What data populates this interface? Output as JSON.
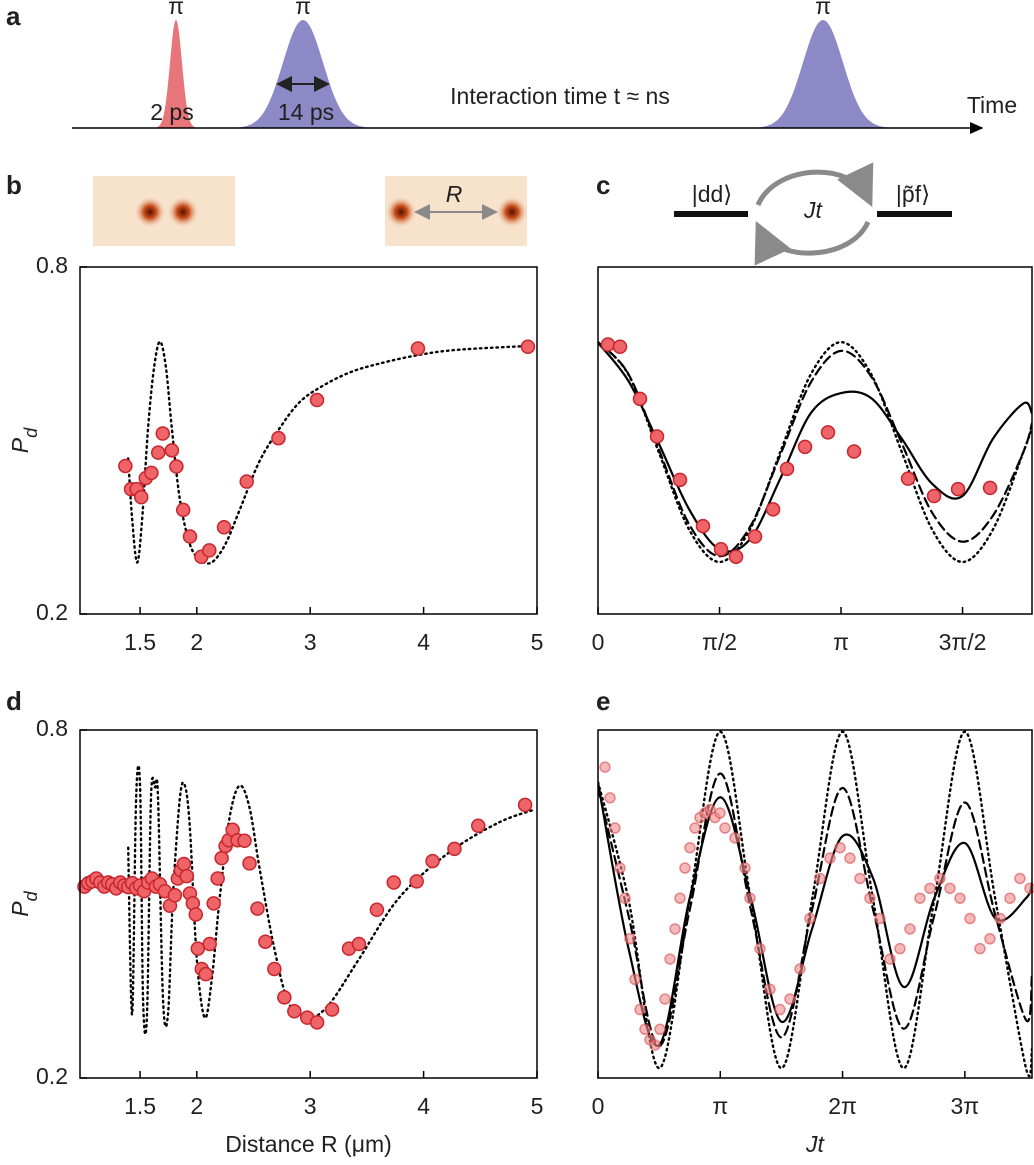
{
  "panel_a": {
    "label": "a",
    "pulse_labels": [
      "π",
      "π",
      "π"
    ],
    "widths": [
      "2 ps",
      "14 ps"
    ],
    "interaction": "Interaction time t ≈ ns",
    "axis": "Time"
  },
  "chart_data": [
    {
      "type": "scatter",
      "panel": "b",
      "image_label": "R",
      "y_label": "P",
      "y_label_sub": "d",
      "xlim": [
        0.97,
        5
      ],
      "xticks": [
        1.5,
        2,
        3,
        4,
        5
      ],
      "ylim": [
        0.2,
        0.8
      ],
      "yticks": [
        0.2,
        0.8
      ],
      "lines": [
        {
          "style": "dotted",
          "color": "#000000",
          "x": [
            1.395,
            1.43,
            1.474,
            1.518,
            1.57,
            1.623,
            1.675,
            1.728,
            1.78,
            1.85,
            1.94,
            2.03,
            2.13,
            2.25,
            2.38,
            2.55,
            2.73,
            2.9,
            3.08,
            3.34,
            3.61,
            3.96,
            4.31,
            4.98
          ],
          "values": [
            0.469,
            0.364,
            0.289,
            0.364,
            0.521,
            0.626,
            0.671,
            0.626,
            0.521,
            0.399,
            0.32,
            0.294,
            0.289,
            0.32,
            0.381,
            0.463,
            0.521,
            0.565,
            0.591,
            0.617,
            0.633,
            0.648,
            0.657,
            0.664
          ]
        }
      ],
      "points": {
        "color": "#ef6468",
        "edge": "#c8262c",
        "opacity": 1,
        "x": [
          1.37,
          1.42,
          1.47,
          1.51,
          1.55,
          1.6,
          1.66,
          1.7,
          1.78,
          1.82,
          1.88,
          1.94,
          2.04,
          2.11,
          2.24,
          2.44,
          2.72,
          3.06,
          3.95,
          4.92
        ],
        "values": [
          0.456,
          0.416,
          0.416,
          0.402,
          0.435,
          0.444,
          0.479,
          0.512,
          0.483,
          0.455,
          0.38,
          0.334,
          0.299,
          0.31,
          0.35,
          0.429,
          0.504,
          0.57,
          0.659,
          0.662
        ]
      }
    },
    {
      "type": "scatter",
      "panel": "c",
      "diagram": {
        "left": "|dd⟩",
        "middle": "Jt",
        "right": "|p̃f⟩"
      },
      "xlim": [
        0,
        5.61
      ],
      "xticks": [
        0,
        {
          "value": 1.5708,
          "label": "π/2"
        },
        {
          "value": 3.1416,
          "label": "π"
        },
        {
          "value": 4.7124,
          "label": "3π/2"
        }
      ],
      "ylim": [
        0.2,
        0.8
      ],
      "lines": [
        {
          "style": "dotted",
          "color": "#000000",
          "x": [
            0,
            0.393,
            0.785,
            1.178,
            1.571,
            1.963,
            2.356,
            2.749,
            3.142,
            3.534,
            3.927,
            4.32,
            4.712,
            5.105,
            5.498,
            5.61
          ],
          "values": [
            0.67,
            0.614,
            0.48,
            0.346,
            0.29,
            0.346,
            0.48,
            0.614,
            0.67,
            0.614,
            0.48,
            0.346,
            0.29,
            0.346,
            0.48,
            0.522
          ]
        },
        {
          "style": "dashed",
          "color": "#000000",
          "x": [
            0,
            0.393,
            0.785,
            1.178,
            1.571,
            1.963,
            2.356,
            2.749,
            3.142,
            3.534,
            3.927,
            4.32,
            4.712,
            5.105,
            5.498,
            5.61
          ],
          "values": [
            0.67,
            0.615,
            0.485,
            0.355,
            0.3,
            0.35,
            0.475,
            0.6,
            0.655,
            0.61,
            0.495,
            0.375,
            0.325,
            0.37,
            0.48,
            0.53
          ]
        },
        {
          "style": "solid",
          "color": "#000000",
          "x": [
            0,
            0.393,
            0.785,
            1.178,
            1.571,
            1.963,
            2.356,
            2.749,
            3.142,
            3.534,
            3.927,
            4.32,
            4.712,
            5.105,
            5.498,
            5.61
          ],
          "values": [
            0.669,
            0.603,
            0.495,
            0.381,
            0.312,
            0.329,
            0.434,
            0.547,
            0.582,
            0.573,
            0.503,
            0.425,
            0.404,
            0.503,
            0.564,
            0.547
          ]
        }
      ],
      "points": {
        "color": "#ef6468",
        "edge": "#c8262c",
        "opacity": 1,
        "x": [
          0.129,
          0.284,
          0.543,
          0.763,
          1.06,
          1.357,
          1.59,
          1.784,
          2.03,
          2.263,
          2.443,
          2.676,
          2.973,
          3.31,
          4.008,
          4.344,
          4.654,
          5.068
        ],
        "values": [
          0.666,
          0.662,
          0.572,
          0.507,
          0.432,
          0.352,
          0.312,
          0.299,
          0.334,
          0.381,
          0.451,
          0.489,
          0.514,
          0.481,
          0.434,
          0.404,
          0.416,
          0.418
        ]
      }
    },
    {
      "type": "scatter",
      "panel": "d",
      "y_label": "P",
      "y_label_sub": "d",
      "x_label": "Distance R (μm)",
      "xlim": [
        0.97,
        5
      ],
      "xticks": [
        1.5,
        2,
        3,
        4,
        5
      ],
      "ylim": [
        0.2,
        0.8
      ],
      "yticks": [
        0.2,
        0.8
      ],
      "lines": [
        {
          "style": "dotted",
          "color": "#000000",
          "x": [
            1.395,
            1.43,
            1.465,
            1.5,
            1.526,
            1.561,
            1.596,
            1.632,
            1.658,
            1.702,
            1.746,
            1.789,
            1.851,
            1.895,
            1.939,
            2.0,
            2.07,
            2.132,
            2.202,
            2.289,
            2.377,
            2.465,
            2.553,
            2.684,
            2.816,
            2.991,
            3.167,
            3.43,
            3.781,
            4.219,
            4.658,
            4.982
          ],
          "values": [
            0.597,
            0.31,
            0.683,
            0.701,
            0.336,
            0.31,
            0.683,
            0.701,
            0.683,
            0.336,
            0.31,
            0.51,
            0.683,
            0.704,
            0.631,
            0.405,
            0.304,
            0.37,
            0.51,
            0.649,
            0.704,
            0.666,
            0.562,
            0.423,
            0.327,
            0.304,
            0.327,
            0.405,
            0.51,
            0.588,
            0.64,
            0.663
          ]
        }
      ],
      "points": {
        "color": "#ef6468",
        "edge": "#c8262c",
        "opacity": 1,
        "x": [
          1.009,
          1.044,
          1.079,
          1.114,
          1.149,
          1.184,
          1.219,
          1.254,
          1.289,
          1.325,
          1.36,
          1.395,
          1.43,
          1.465,
          1.5,
          1.535,
          1.57,
          1.605,
          1.64,
          1.675,
          1.719,
          1.763,
          1.807,
          1.833,
          1.86,
          1.886,
          1.912,
          1.939,
          1.965,
          1.991,
          2.009,
          2.044,
          2.079,
          2.114,
          2.149,
          2.184,
          2.219,
          2.254,
          2.281,
          2.316,
          2.36,
          2.421,
          2.465,
          2.535,
          2.605,
          2.684,
          2.772,
          2.86,
          2.974,
          3.061,
          3.193,
          3.342,
          3.43,
          3.588,
          3.737,
          3.939,
          4.079,
          4.272,
          4.482,
          4.895
        ],
        "values": [
          0.53,
          0.536,
          0.539,
          0.544,
          0.537,
          0.53,
          0.537,
          0.534,
          0.527,
          0.537,
          0.532,
          0.529,
          0.536,
          0.527,
          0.532,
          0.522,
          0.537,
          0.544,
          0.53,
          0.534,
          0.522,
          0.497,
          0.515,
          0.544,
          0.558,
          0.569,
          0.548,
          0.518,
          0.501,
          0.482,
          0.423,
          0.388,
          0.379,
          0.431,
          0.501,
          0.544,
          0.579,
          0.6,
          0.61,
          0.628,
          0.61,
          0.609,
          0.57,
          0.492,
          0.435,
          0.388,
          0.339,
          0.315,
          0.304,
          0.296,
          0.318,
          0.423,
          0.431,
          0.49,
          0.537,
          0.539,
          0.574,
          0.595,
          0.635,
          0.671
        ]
      }
    },
    {
      "type": "scatter",
      "panel": "e",
      "x_label": "Jt",
      "xlim": [
        0,
        11.15
      ],
      "xticks": [
        0,
        {
          "value": 3.1416,
          "label": "π"
        },
        {
          "value": 6.2832,
          "label": "2π"
        },
        {
          "value": 9.4248,
          "label": "3π"
        }
      ],
      "ylim": [
        0.2,
        0.8
      ],
      "lines": [
        {
          "style": "dotted",
          "color": "#000000",
          "x": [
            0,
            0.785,
            1.571,
            2.356,
            3.142,
            3.927,
            4.712,
            5.498,
            6.283,
            7.069,
            7.854,
            8.639,
            9.425,
            10.21,
            10.996,
            11.15
          ],
          "values": [
            0.71,
            0.507,
            0.217,
            0.507,
            0.797,
            0.507,
            0.217,
            0.507,
            0.797,
            0.507,
            0.217,
            0.507,
            0.797,
            0.507,
            0.217,
            0.25
          ]
        },
        {
          "style": "dashed",
          "color": "#000000",
          "x": [
            0,
            0.785,
            1.571,
            2.356,
            3.142,
            3.927,
            4.712,
            5.498,
            6.283,
            7.069,
            7.854,
            8.639,
            9.425,
            10.21,
            10.996,
            11.15
          ],
          "values": [
            0.7,
            0.48,
            0.255,
            0.49,
            0.725,
            0.49,
            0.27,
            0.49,
            0.7,
            0.49,
            0.285,
            0.48,
            0.675,
            0.48,
            0.3,
            0.38
          ]
        },
        {
          "style": "solid",
          "color": "#000000",
          "x": [
            0,
            0.785,
            1.571,
            2.356,
            3.142,
            3.927,
            4.712,
            5.498,
            6.283,
            7.069,
            7.854,
            8.639,
            9.425,
            10.21,
            10.996,
            11.15
          ],
          "values": [
            0.71,
            0.423,
            0.257,
            0.51,
            0.684,
            0.51,
            0.297,
            0.457,
            0.617,
            0.544,
            0.357,
            0.51,
            0.605,
            0.475,
            0.51,
            0.536
          ]
        }
      ],
      "points": {
        "color": "#ef8a8c",
        "edge": "#d9474b",
        "opacity": 0.6,
        "x": [
          0.18,
          0.308,
          0.437,
          0.565,
          0.694,
          0.822,
          0.95,
          1.079,
          1.207,
          1.336,
          1.464,
          1.593,
          1.721,
          1.85,
          1.978,
          2.106,
          2.235,
          2.363,
          2.492,
          2.62,
          2.749,
          2.877,
          3.005,
          3.134,
          3.262,
          3.519,
          3.776,
          3.905,
          4.162,
          4.418,
          4.675,
          4.932,
          5.189,
          5.446,
          5.703,
          5.96,
          6.217,
          6.473,
          6.73,
          6.987,
          7.244,
          7.501,
          7.758,
          8.015,
          8.271,
          8.528,
          8.785,
          9.042,
          9.299,
          9.556,
          9.813,
          10.07,
          10.327,
          10.583,
          10.84,
          11.097
        ],
        "values": [
          0.736,
          0.683,
          0.631,
          0.562,
          0.51,
          0.44,
          0.37,
          0.318,
          0.284,
          0.266,
          0.257,
          0.284,
          0.336,
          0.405,
          0.457,
          0.51,
          0.562,
          0.597,
          0.631,
          0.649,
          0.657,
          0.663,
          0.649,
          0.657,
          0.631,
          0.614,
          0.562,
          0.51,
          0.423,
          0.353,
          0.318,
          0.336,
          0.388,
          0.475,
          0.544,
          0.579,
          0.597,
          0.579,
          0.544,
          0.51,
          0.475,
          0.405,
          0.423,
          0.457,
          0.51,
          0.527,
          0.544,
          0.527,
          0.51,
          0.475,
          0.423,
          0.44,
          0.475,
          0.51,
          0.544,
          0.527
        ]
      }
    }
  ]
}
